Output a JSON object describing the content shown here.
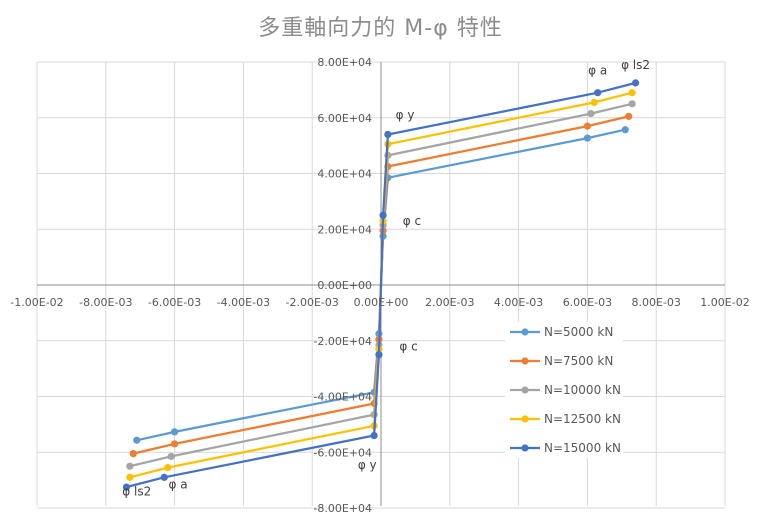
{
  "chart_data": {
    "type": "line",
    "title": "多重軸向力的 M-φ 特性",
    "xlim": [
      -0.01,
      0.01
    ],
    "ylim": [
      -80000,
      80000
    ],
    "x_ticks": [
      -0.01,
      -0.008,
      -0.006,
      -0.004,
      -0.002,
      0,
      0.002,
      0.004,
      0.006,
      0.008,
      0.01
    ],
    "x_tick_labels": [
      "-1.00E-02",
      "-8.00E-03",
      "-6.00E-03",
      "-4.00E-03",
      "-2.00E-03",
      "0.00E+00",
      "2.00E-03",
      "4.00E-03",
      "6.00E-03",
      "8.00E-03",
      "1.00E-02"
    ],
    "y_ticks": [
      80000,
      60000,
      40000,
      20000,
      0,
      -20000,
      -40000,
      -60000,
      -80000
    ],
    "y_tick_labels": [
      "8.00E+04",
      "6.00E+04",
      "4.00E+04",
      "2.00E+04",
      "0.00E+00",
      "-2.00E+04",
      "-4.00E+04",
      "-6.00E+04",
      "-8.00E+04"
    ],
    "grid": true,
    "legend_position": "lower-right",
    "annotations": [
      {
        "text": "φ ls2",
        "x": 0.0074,
        "y": 77500
      },
      {
        "text": "φ a",
        "x": 0.0063,
        "y": 75500
      },
      {
        "text": "φ y",
        "x": 0.0007,
        "y": 59500
      },
      {
        "text": "φ c",
        "x": 0.0009,
        "y": 21500
      },
      {
        "text": "φ c",
        "x": 0.0008,
        "y": -23500
      },
      {
        "text": "φ y",
        "x": -0.0004,
        "y": -66000
      },
      {
        "text": "φ a",
        "x": -0.0059,
        "y": -73000
      },
      {
        "text": "φ ls2",
        "x": -0.0071,
        "y": -75500
      }
    ],
    "series": [
      {
        "name": "N=5000 kN",
        "color": "#5b9bd5",
        "x": [
          -0.0071,
          -0.006,
          -0.0002,
          -6e-05,
          0,
          6e-05,
          0.0002,
          0.006,
          0.0071
        ],
        "y": [
          -55700,
          -52700,
          -38500,
          -17500,
          0,
          17500,
          38500,
          52700,
          55700
        ]
      },
      {
        "name": "N=7500 kN",
        "color": "#ed7d31",
        "x": [
          -0.0072,
          -0.006,
          -0.0002,
          -6e-05,
          0,
          6e-05,
          0.0002,
          0.006,
          0.0072
        ],
        "y": [
          -60500,
          -57000,
          -42500,
          -19500,
          0,
          19500,
          42500,
          57000,
          60500
        ]
      },
      {
        "name": "N=10000 kN",
        "color": "#a5a5a5",
        "x": [
          -0.0073,
          -0.0061,
          -0.0002,
          -6e-05,
          0,
          6e-05,
          0.0002,
          0.0061,
          0.0073
        ],
        "y": [
          -65000,
          -61500,
          -46500,
          -21500,
          0,
          21500,
          46500,
          61500,
          65000
        ]
      },
      {
        "name": "N=12500 kN",
        "color": "#ffc000",
        "x": [
          -0.0073,
          -0.0062,
          -0.0002,
          -6e-05,
          0,
          6e-05,
          0.0002,
          0.0062,
          0.0073
        ],
        "y": [
          -69000,
          -65500,
          -50500,
          -23000,
          0,
          23000,
          50500,
          65500,
          69000
        ]
      },
      {
        "name": "N=15000 kN",
        "color": "#4472c4",
        "x": [
          -0.0074,
          -0.0063,
          -0.0002,
          -6e-05,
          0,
          6e-05,
          0.0002,
          0.0063,
          0.0074
        ],
        "y": [
          -72500,
          -69000,
          -54000,
          -25000,
          0,
          25000,
          54000,
          69000,
          72500
        ]
      }
    ]
  }
}
